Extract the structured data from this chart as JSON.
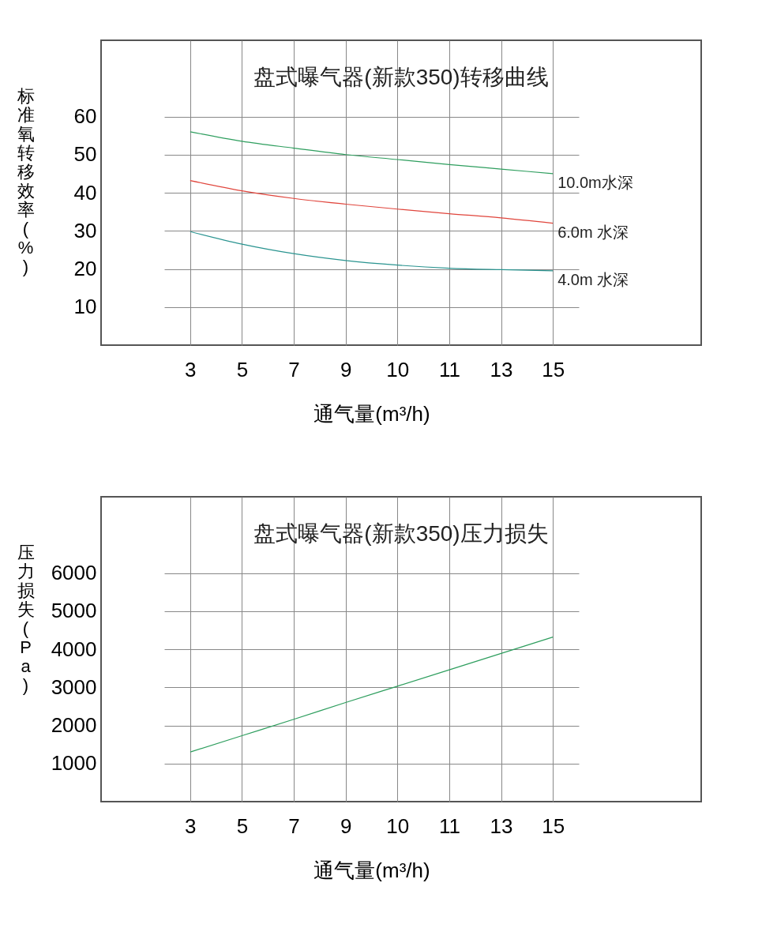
{
  "chart_data": [
    {
      "type": "line",
      "title": "盘式曝气器(新款350)转移曲线",
      "xlabel": "通气量(m³/h)",
      "ylabel": "标准氧转移效率(%)",
      "categories": [
        "3",
        "5",
        "7",
        "9",
        "10",
        "11",
        "13",
        "15"
      ],
      "series": [
        {
          "name": "10.0m水深",
          "color": "#2e9e5e",
          "values": [
            56,
            53.5,
            51.7,
            50,
            48.7,
            47.4,
            46.2,
            45
          ]
        },
        {
          "name": "6.0m 水深",
          "color": "#e0453c",
          "values": [
            43.2,
            40.5,
            38.5,
            37,
            35.7,
            34.5,
            33.4,
            32
          ]
        },
        {
          "name": "4.0m 水深",
          "color": "#2a9490",
          "values": [
            29.8,
            26.5,
            24,
            22.2,
            21,
            20.2,
            19.8,
            19.5
          ]
        }
      ],
      "ylim": [
        0,
        80
      ],
      "yticks": [
        10,
        20,
        30,
        40,
        50,
        60
      ],
      "grid": true,
      "legend": false
    },
    {
      "type": "line",
      "title": "盘式曝气器(新款350)压力损失",
      "xlabel": "通气量(m³/h)",
      "ylabel": "压力损失(Pa)",
      "categories": [
        "3",
        "5",
        "7",
        "9",
        "10",
        "11",
        "13",
        "15"
      ],
      "series": [
        {
          "color": "#2e9e5e",
          "values": [
            1300,
            1730,
            2160,
            2600,
            3030,
            3460,
            3890,
            4320
          ]
        }
      ],
      "ylim": [
        0,
        8000
      ],
      "yticks": [
        1000,
        2000,
        3000,
        4000,
        5000,
        6000
      ],
      "grid": true,
      "legend": false
    }
  ]
}
